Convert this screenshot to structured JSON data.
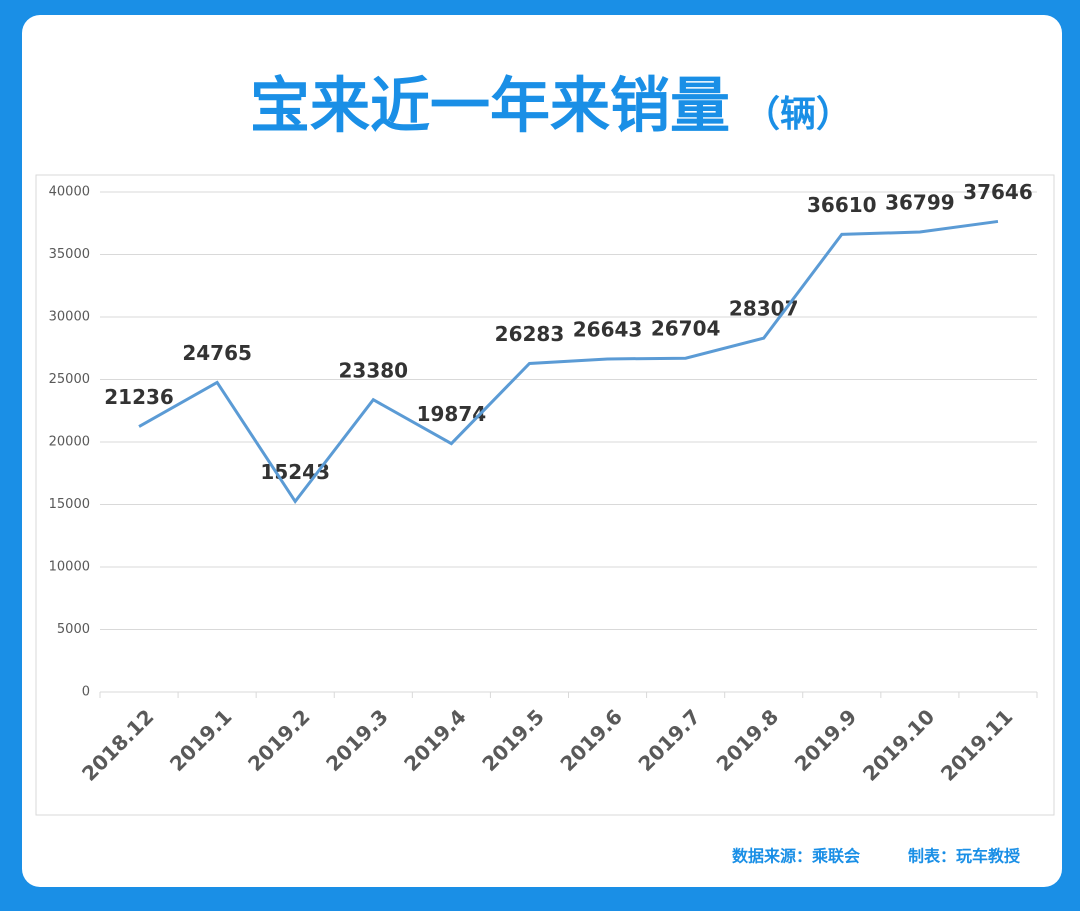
{
  "chart_data": {
    "type": "line",
    "title": "宝来近一年来销量",
    "unit": "（辆）",
    "categories": [
      "2018.12",
      "2019.1",
      "2019.2",
      "2019.3",
      "2019.4",
      "2019.5",
      "2019.6",
      "2019.7",
      "2019.8",
      "2019.9",
      "2019.10",
      "2019.11"
    ],
    "series": [
      {
        "name": "宝来",
        "color": "#5b9bd5",
        "values": [
          21236,
          24765,
          15243,
          23380,
          19874,
          26283,
          26643,
          26704,
          28307,
          36610,
          36799,
          37646
        ]
      }
    ],
    "ylim": [
      0,
      40000
    ],
    "yticks": [
      0,
      5000,
      10000,
      15000,
      20000,
      25000,
      30000,
      35000,
      40000
    ],
    "grid": true,
    "source": "数据来源：乘联会",
    "credit": "制表：玩车教授"
  }
}
